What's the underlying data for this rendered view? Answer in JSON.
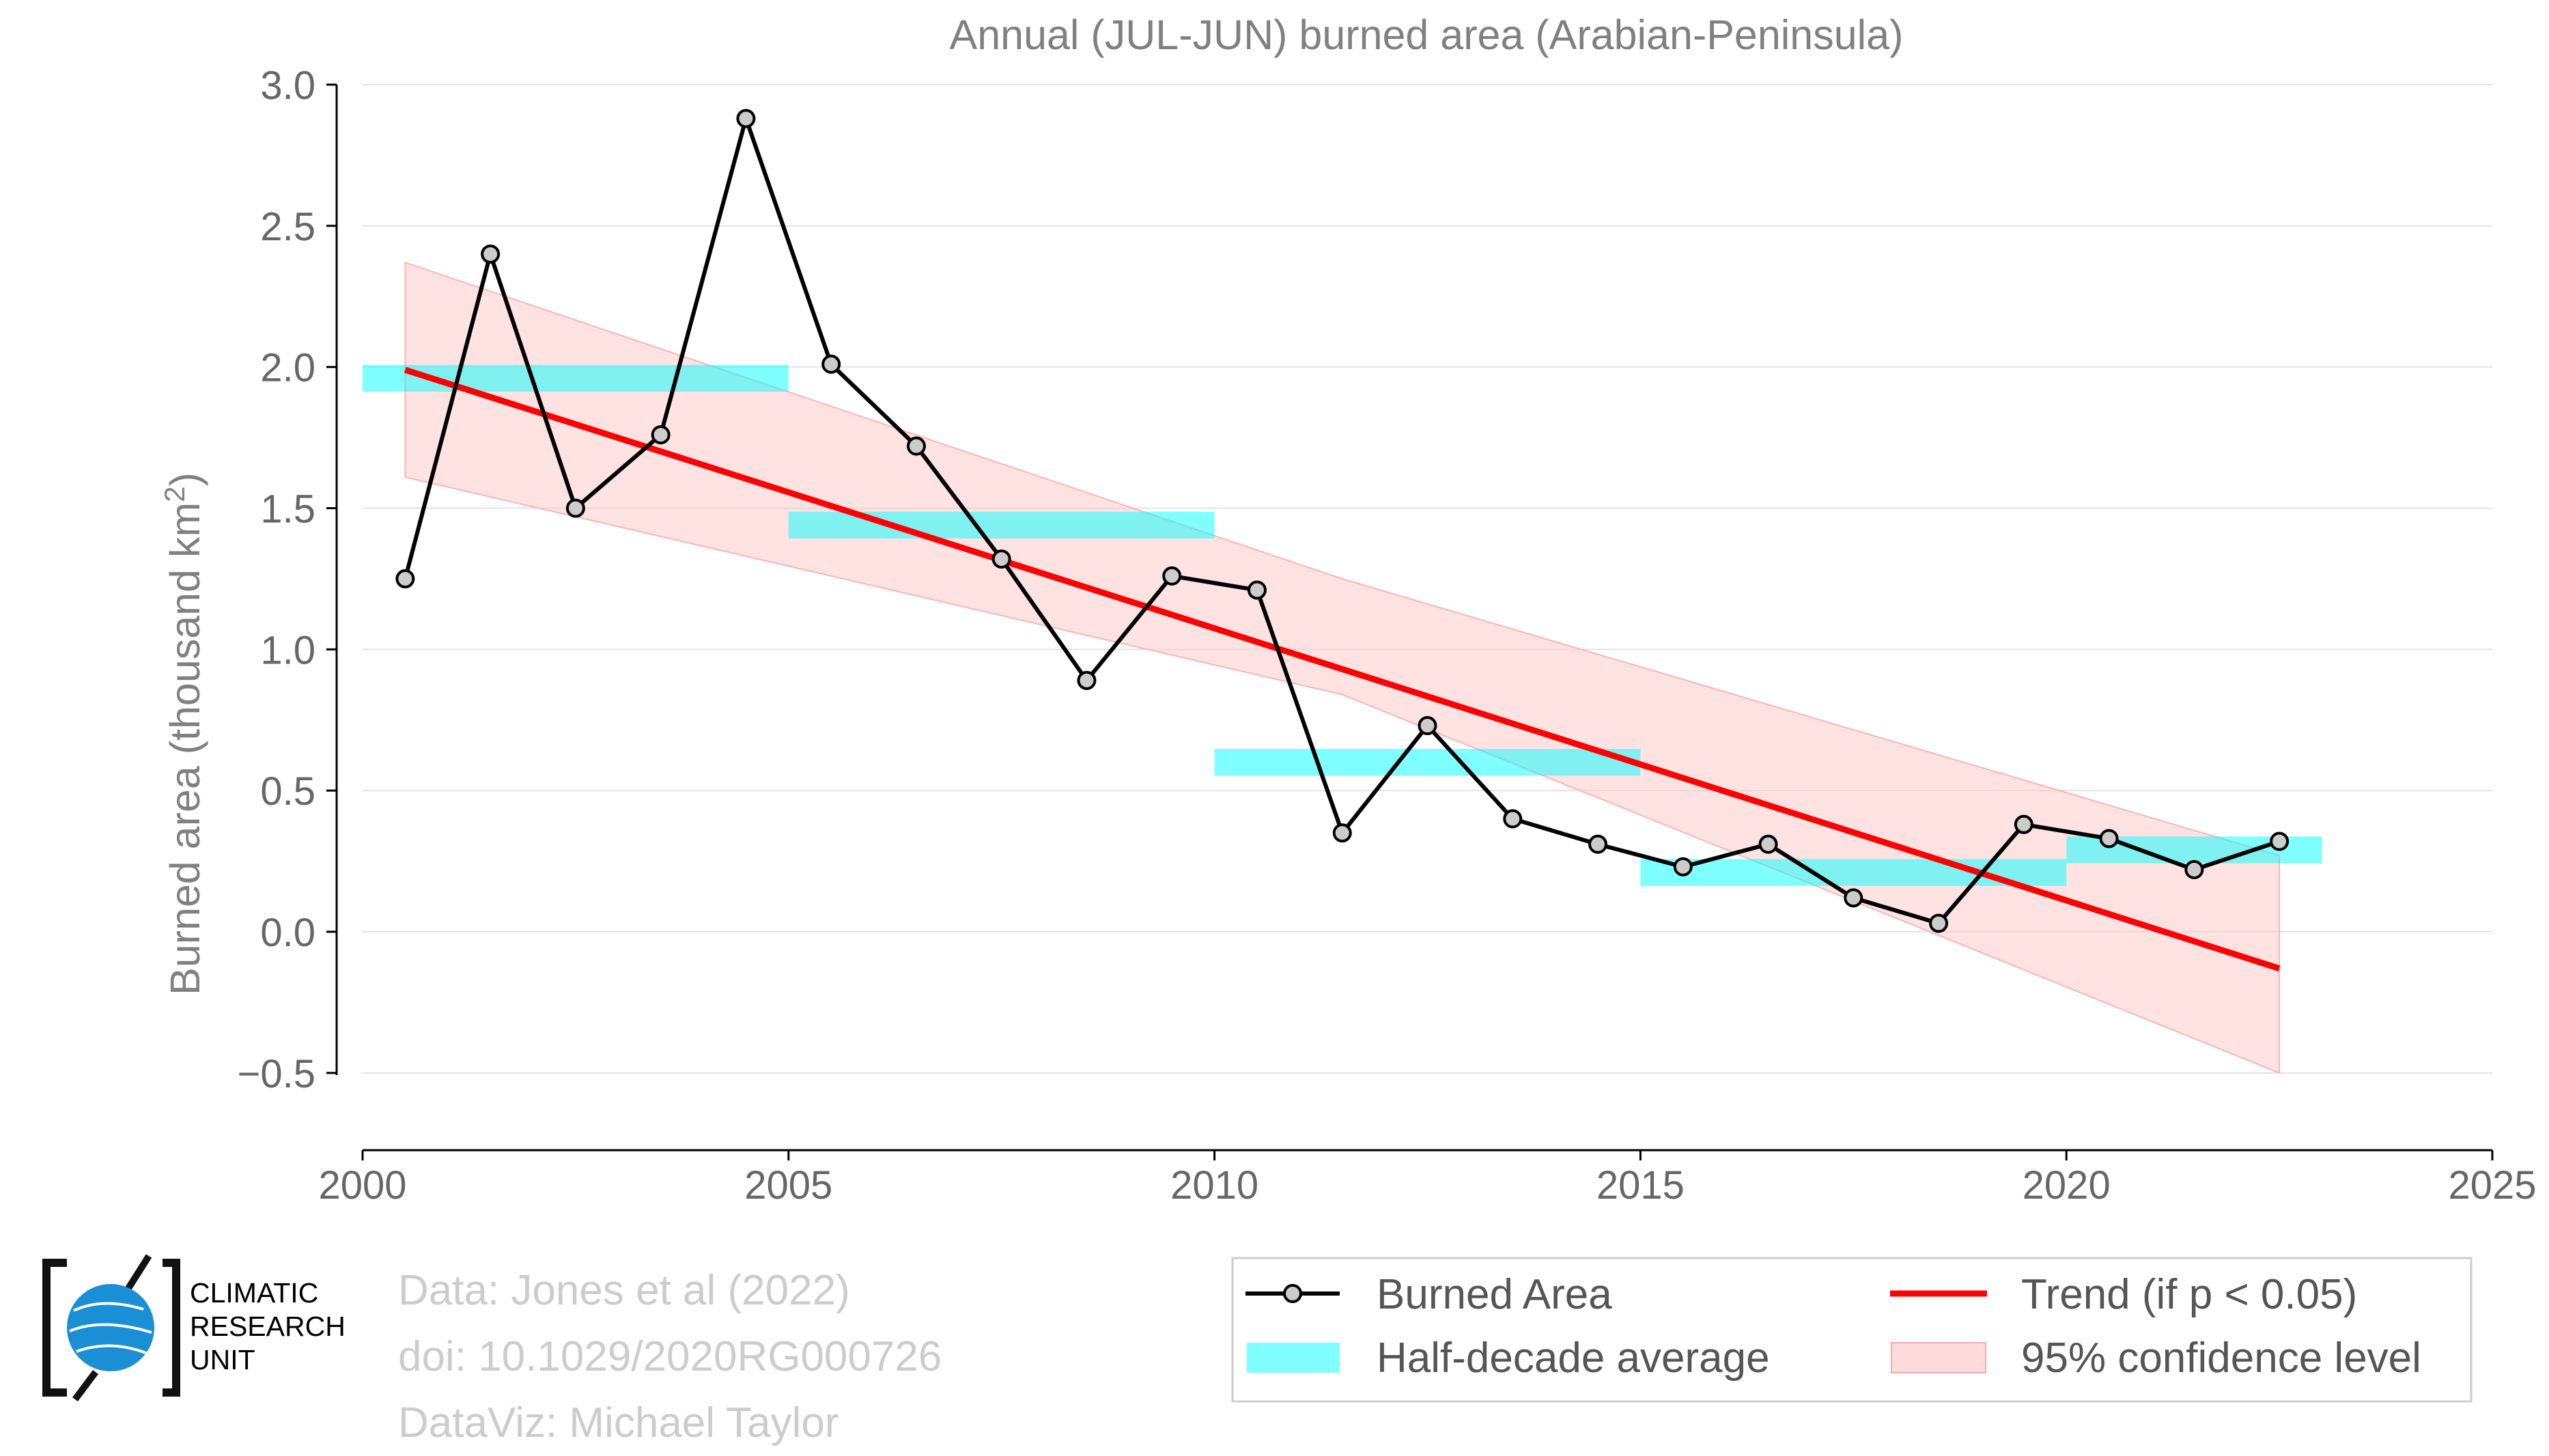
{
  "chart_data": {
    "type": "line",
    "title": "Annual (JUL-JUN) burned area (Arabian-Peninsula)",
    "ylabel": "Burned area (thousand km",
    "ylabel_sup": "2",
    "ylabel_close": ")",
    "xlim": [
      2000,
      2025
    ],
    "ylim": [
      -0.78,
      3.0
    ],
    "x_ticks": [
      2000,
      2005,
      2010,
      2015,
      2020,
      2025
    ],
    "x_tick_labels": [
      "2000",
      "2005",
      "2010",
      "2015",
      "2020",
      "2025"
    ],
    "y_ticks": [
      -0.5,
      0.0,
      0.5,
      1.0,
      1.5,
      2.0,
      2.5,
      3.0
    ],
    "y_tick_labels": [
      "−0.5",
      "0.0",
      "0.5",
      "1.0",
      "1.5",
      "2.0",
      "2.5",
      "3.0"
    ],
    "grid": "horizontal",
    "legend_position": "bottom-right",
    "series": [
      {
        "name": "Burned Area",
        "kind": "line-markers",
        "color": "#000000",
        "marker_fill": "#cccccc",
        "x": [
          2000.5,
          2001.5,
          2002.5,
          2003.5,
          2004.5,
          2005.5,
          2006.5,
          2007.5,
          2008.5,
          2009.5,
          2010.5,
          2011.5,
          2012.5,
          2013.5,
          2014.5,
          2015.5,
          2016.5,
          2017.5,
          2018.5,
          2019.5,
          2020.5,
          2021.5,
          2022.5
        ],
        "y": [
          1.25,
          2.4,
          1.5,
          1.76,
          2.88,
          2.01,
          1.72,
          1.32,
          0.89,
          1.26,
          1.21,
          0.35,
          0.73,
          0.4,
          0.31,
          0.23,
          0.31,
          0.12,
          0.03,
          0.38,
          0.33,
          0.22,
          0.32
        ]
      },
      {
        "name": "Half-decade average",
        "kind": "band-segments",
        "color": "#00ffff",
        "segments": [
          {
            "x0": 2000,
            "x1": 2005,
            "y": 1.96
          },
          {
            "x0": 2005,
            "x1": 2010,
            "y": 1.44
          },
          {
            "x0": 2010,
            "x1": 2015,
            "y": 0.6
          },
          {
            "x0": 2015,
            "x1": 2020,
            "y": 0.21
          },
          {
            "x0": 2020,
            "x1": 2023,
            "y": 0.29
          }
        ]
      },
      {
        "name": "Trend (if p < 0.05)",
        "kind": "line",
        "color": "#ff0000",
        "x": [
          2000.5,
          2022.5
        ],
        "y": [
          1.99,
          -0.13
        ]
      },
      {
        "name": "95% confidence level",
        "kind": "band",
        "color": "#ffcccc",
        "x": [
          2000.5,
          2011.5,
          2022.5
        ],
        "upper": [
          2.37,
          1.25,
          0.27
        ],
        "lower": [
          1.61,
          0.84,
          -0.5
        ]
      }
    ],
    "legend": [
      {
        "label": "Burned Area",
        "kind": "line-marker"
      },
      {
        "label": "Trend (if p < 0.05)",
        "kind": "red-line"
      },
      {
        "label": "Half-decade average",
        "kind": "cyan-patch"
      },
      {
        "label": "95% confidence level",
        "kind": "pink-patch"
      }
    ]
  },
  "credits": {
    "line1": "Data: Jones et al (2022)",
    "line2": "doi: 10.1029/2020RG000726",
    "line3": "DataViz: Michael Taylor"
  },
  "logo": {
    "line1": "CLIMATIC",
    "line2": "RESEARCH",
    "line3": "UNIT"
  }
}
